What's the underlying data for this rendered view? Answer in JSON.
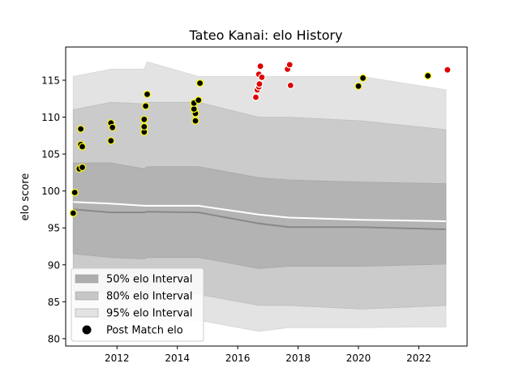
{
  "chart_data": {
    "type": "scatter",
    "title": "Tateo Kanai: elo History",
    "xlabel": "",
    "ylabel": "elo score",
    "xlim": [
      2010.3,
      2023.6
    ],
    "ylim": [
      79,
      119.5
    ],
    "xticks": [
      2012,
      2014,
      2016,
      2018,
      2020,
      2022
    ],
    "yticks": [
      80,
      85,
      90,
      95,
      100,
      105,
      110,
      115
    ],
    "grid": false,
    "legend_position": "lower-left",
    "legend": [
      {
        "label": "50% elo Interval",
        "kind": "band",
        "color": "#adadad"
      },
      {
        "label": "80% elo Interval",
        "kind": "band",
        "color": "#c6c6c6"
      },
      {
        "label": "95% elo Interval",
        "kind": "band",
        "color": "#e3e3e3"
      },
      {
        "label": "Post Match elo",
        "kind": "marker",
        "color": "#000000"
      }
    ],
    "colors": {
      "band95": "#e3e3e3",
      "band80": "#cbcbcb",
      "band50": "#b3b3b3",
      "median_line": "#888888",
      "mean_line": "#ffffff",
      "win_marker_fill": "#000000",
      "win_marker_edge": "#ffff00",
      "loss_marker_fill": "#dd0000",
      "loss_marker_edge": "#ffffff"
    },
    "bands": {
      "x": [
        2010.55,
        2011.8,
        2012.9,
        2013.0,
        2014.7,
        2016.7,
        2017.7,
        2020.1,
        2022.9
      ],
      "p95_low": [
        83.0,
        82.5,
        82.5,
        82.5,
        82.5,
        81.0,
        81.5,
        81.5,
        81.6
      ],
      "p95_high": [
        115.5,
        116.5,
        116.5,
        117.5,
        115.5,
        115.5,
        115.5,
        115.5,
        113.7
      ],
      "p80_low": [
        86.5,
        86.0,
        85.8,
        86.0,
        86.0,
        84.5,
        84.5,
        84.0,
        84.5
      ],
      "p80_high": [
        111.0,
        112.0,
        111.8,
        112.0,
        112.0,
        110.0,
        110.0,
        109.5,
        108.3
      ],
      "p50_low": [
        91.5,
        91.0,
        90.8,
        91.0,
        91.0,
        89.5,
        89.8,
        89.8,
        90.1
      ],
      "p50_high": [
        103.8,
        103.8,
        103.0,
        103.3,
        103.3,
        101.8,
        101.5,
        101.2,
        101.0
      ],
      "median": [
        97.5,
        97.1,
        97.1,
        97.2,
        97.1,
        95.6,
        95.1,
        95.1,
        94.8
      ],
      "mean": [
        98.5,
        98.3,
        98.0,
        98.0,
        98.0,
        96.8,
        96.4,
        96.1,
        95.9
      ]
    },
    "series": [
      {
        "name": "Post Match elo",
        "marker": "win",
        "points": [
          [
            2010.55,
            97.0
          ],
          [
            2010.6,
            99.8
          ],
          [
            2010.75,
            103.0
          ],
          [
            2010.85,
            103.2
          ],
          [
            2010.8,
            106.3
          ],
          [
            2010.85,
            106.0
          ],
          [
            2010.8,
            108.4
          ],
          [
            2011.8,
            106.8
          ],
          [
            2011.8,
            109.2
          ],
          [
            2011.85,
            108.6
          ],
          [
            2012.9,
            108.0
          ],
          [
            2012.9,
            108.7
          ],
          [
            2012.9,
            109.7
          ],
          [
            2012.95,
            111.5
          ],
          [
            2013.0,
            113.1
          ],
          [
            2014.6,
            109.5
          ],
          [
            2014.6,
            110.5
          ],
          [
            2014.55,
            111.1
          ],
          [
            2014.55,
            111.9
          ],
          [
            2014.7,
            112.3
          ],
          [
            2014.75,
            114.6
          ],
          [
            2020.0,
            114.2
          ],
          [
            2020.15,
            115.3
          ],
          [
            2022.3,
            115.6
          ]
        ]
      },
      {
        "name": "Post Match elo",
        "marker": "loss",
        "points": [
          [
            2016.6,
            112.7
          ],
          [
            2016.65,
            113.7
          ],
          [
            2016.7,
            114.1
          ],
          [
            2016.72,
            114.5
          ],
          [
            2016.7,
            115.8
          ],
          [
            2016.8,
            115.4
          ],
          [
            2016.75,
            116.9
          ],
          [
            2017.65,
            116.5
          ],
          [
            2017.72,
            117.1
          ],
          [
            2017.75,
            114.3
          ],
          [
            2022.95,
            116.4
          ]
        ]
      }
    ]
  }
}
